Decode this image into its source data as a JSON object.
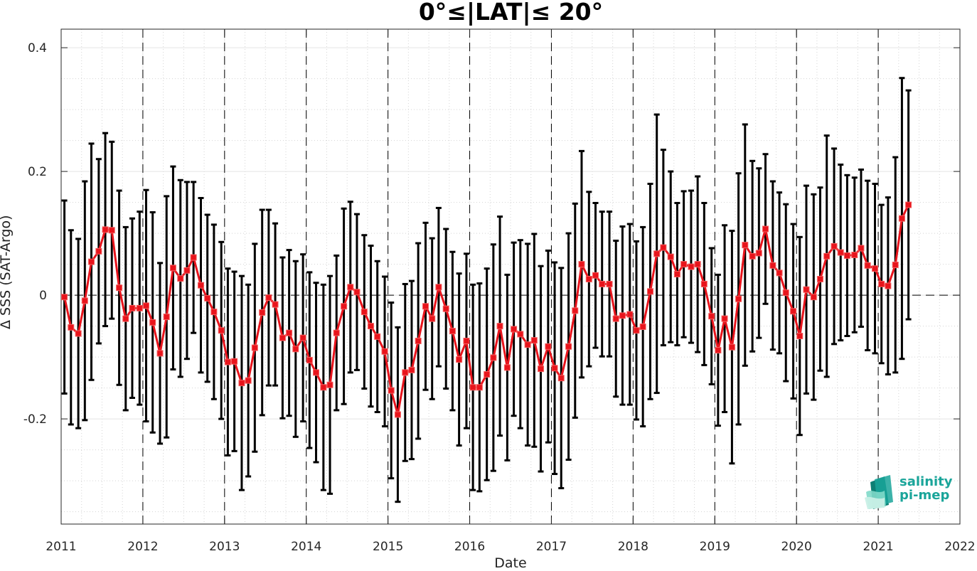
{
  "chart_data": {
    "type": "line",
    "title": "0°≤|LAT|≤ 20°",
    "xlabel": "Date",
    "ylabel": "Δ SSS (SAT-Argo)",
    "xlim": [
      2011,
      2022
    ],
    "ylim": [
      -0.37,
      0.43
    ],
    "x_ticks": [
      "2011",
      "2012",
      "2013",
      "2014",
      "2015",
      "2016",
      "2017",
      "2018",
      "2019",
      "2020",
      "2021",
      "2022"
    ],
    "y_ticks": [
      "0.4",
      "0.2",
      "0",
      "-0.2"
    ],
    "grid": true,
    "line_color": "#e8141c",
    "errorbar_color": "#000000",
    "series": [
      {
        "x": [
          2011.04,
          2011.12,
          2011.21,
          2011.29,
          2011.37,
          2011.46,
          2011.54,
          2011.62,
          2011.71,
          2011.79,
          2011.87,
          2011.96,
          2012.04,
          2012.12,
          2012.21,
          2012.29,
          2012.37,
          2012.46,
          2012.54,
          2012.62,
          2012.71,
          2012.79,
          2012.87,
          2012.96,
          2013.04,
          2013.12,
          2013.21,
          2013.29,
          2013.37,
          2013.46,
          2013.54,
          2013.62,
          2013.71,
          2013.79,
          2013.87,
          2013.96,
          2014.04,
          2014.12,
          2014.21,
          2014.29,
          2014.37,
          2014.46,
          2014.54,
          2014.62,
          2014.71,
          2014.79,
          2014.87,
          2014.96,
          2015.04,
          2015.12,
          2015.21,
          2015.29,
          2015.37,
          2015.46,
          2015.54,
          2015.62,
          2015.71,
          2015.79,
          2015.87,
          2015.96,
          2016.04,
          2016.12,
          2016.21,
          2016.29,
          2016.37,
          2016.46,
          2016.54,
          2016.62,
          2016.71,
          2016.79,
          2016.87,
          2016.96,
          2017.04,
          2017.12,
          2017.21,
          2017.29,
          2017.37,
          2017.46,
          2017.54,
          2017.62,
          2017.71,
          2017.79,
          2017.87,
          2017.96,
          2018.04,
          2018.12,
          2018.21,
          2018.29,
          2018.37,
          2018.46,
          2018.54,
          2018.62,
          2018.71,
          2018.79,
          2018.87,
          2018.96,
          2019.04,
          2019.12,
          2019.21,
          2019.29,
          2019.37,
          2019.46,
          2019.54,
          2019.62,
          2019.71,
          2019.79,
          2019.87,
          2019.96,
          2020.04,
          2020.12,
          2020.21,
          2020.29,
          2020.37,
          2020.46,
          2020.54,
          2020.62,
          2020.71,
          2020.79,
          2020.87,
          2020.96,
          2021.04,
          2021.12,
          2021.21,
          2021.29,
          2021.37
        ],
        "y": [
          -0.003,
          -0.052,
          -0.062,
          -0.009,
          0.054,
          0.071,
          0.106,
          0.105,
          0.012,
          -0.038,
          -0.021,
          -0.021,
          -0.017,
          -0.044,
          -0.094,
          -0.035,
          0.044,
          0.027,
          0.04,
          0.061,
          0.016,
          -0.005,
          -0.027,
          -0.057,
          -0.108,
          -0.107,
          -0.142,
          -0.138,
          -0.085,
          -0.028,
          -0.004,
          -0.015,
          -0.069,
          -0.061,
          -0.087,
          -0.069,
          -0.105,
          -0.125,
          -0.149,
          -0.145,
          -0.061,
          -0.018,
          0.013,
          0.005,
          -0.027,
          -0.05,
          -0.067,
          -0.091,
          -0.154,
          -0.193,
          -0.125,
          -0.121,
          -0.074,
          -0.018,
          -0.038,
          0.013,
          -0.022,
          -0.058,
          -0.104,
          -0.074,
          -0.149,
          -0.149,
          -0.128,
          -0.101,
          -0.05,
          -0.117,
          -0.055,
          -0.063,
          -0.08,
          -0.073,
          -0.119,
          -0.083,
          -0.118,
          -0.134,
          -0.083,
          -0.025,
          0.05,
          0.026,
          0.032,
          0.018,
          0.018,
          -0.038,
          -0.033,
          -0.031,
          -0.057,
          -0.051,
          0.006,
          0.067,
          0.077,
          0.062,
          0.034,
          0.05,
          0.046,
          0.05,
          0.018,
          -0.034,
          -0.089,
          -0.038,
          -0.084,
          -0.006,
          0.081,
          0.063,
          0.068,
          0.107,
          0.048,
          0.036,
          0.004,
          -0.026,
          -0.066,
          0.009,
          -0.003,
          0.026,
          0.063,
          0.079,
          0.069,
          0.064,
          0.065,
          0.076,
          0.048,
          0.043,
          0.018,
          0.015,
          0.049,
          0.124,
          0.146
        ],
        "err": [
          0.156,
          0.157,
          0.153,
          0.193,
          0.191,
          0.149,
          0.156,
          0.143,
          0.157,
          0.148,
          0.145,
          0.156,
          0.187,
          0.178,
          0.146,
          0.195,
          0.164,
          0.159,
          0.143,
          0.122,
          0.141,
          0.135,
          0.141,
          0.143,
          0.151,
          0.145,
          0.173,
          0.155,
          0.168,
          0.166,
          0.142,
          0.131,
          0.13,
          0.134,
          0.142,
          0.135,
          0.142,
          0.145,
          0.166,
          0.176,
          0.125,
          0.158,
          0.138,
          0.126,
          0.124,
          0.13,
          0.122,
          0.121,
          0.142,
          0.141,
          0.143,
          0.144,
          0.158,
          0.135,
          0.13,
          0.128,
          0.129,
          0.128,
          0.139,
          0.141,
          0.166,
          0.168,
          0.171,
          0.183,
          0.177,
          0.15,
          0.14,
          0.152,
          0.163,
          0.172,
          0.166,
          0.155,
          0.171,
          0.178,
          0.183,
          0.173,
          0.183,
          0.141,
          0.117,
          0.117,
          0.117,
          0.126,
          0.144,
          0.146,
          0.144,
          0.161,
          0.174,
          0.225,
          0.158,
          0.138,
          0.115,
          0.118,
          0.123,
          0.142,
          0.131,
          0.11,
          0.122,
          0.151,
          0.188,
          0.203,
          0.195,
          0.154,
          0.137,
          0.121,
          0.136,
          0.13,
          0.143,
          0.141,
          0.16,
          0.168,
          0.166,
          0.148,
          0.195,
          0.158,
          0.142,
          0.13,
          0.125,
          0.127,
          0.137,
          0.137,
          0.128,
          0.143,
          0.174,
          0.227,
          0.185
        ]
      }
    ]
  },
  "logo": {
    "line1": "salinity",
    "line2": "pi-mep",
    "color": "#1aa59a"
  }
}
